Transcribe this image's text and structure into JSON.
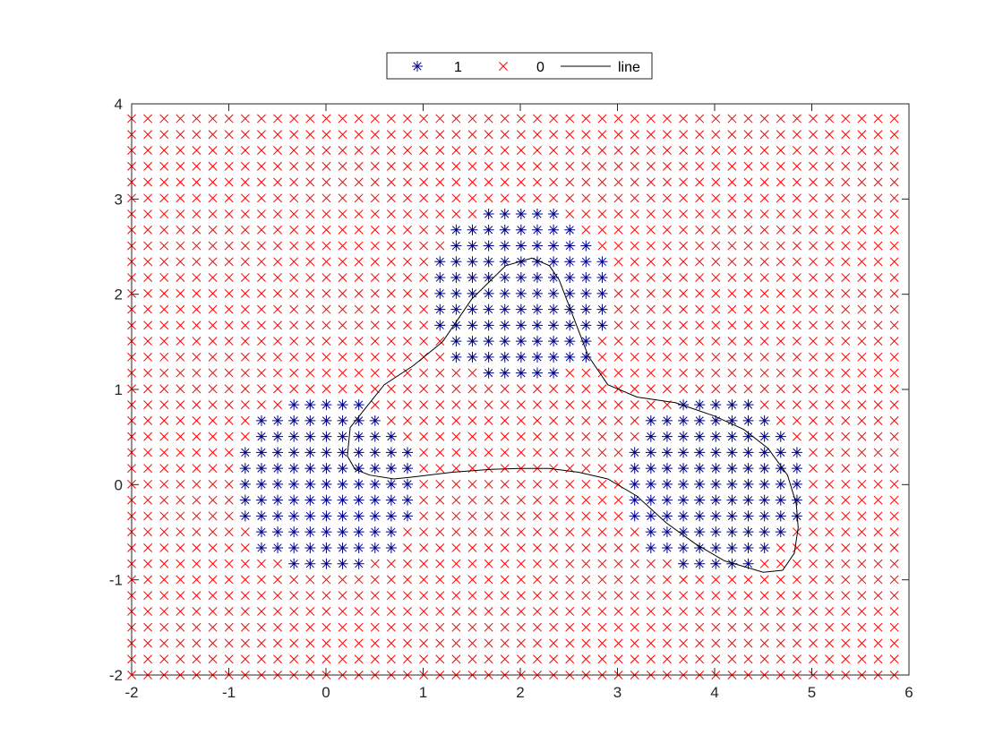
{
  "chart_data": {
    "type": "scatter",
    "title": "",
    "xlabel": "",
    "ylabel": "",
    "xlim": [
      -2,
      6
    ],
    "ylim": [
      -2,
      4
    ],
    "xticks": [
      -2,
      -1,
      0,
      1,
      2,
      3,
      4,
      5,
      6
    ],
    "yticks": [
      -2,
      -1,
      0,
      1,
      2,
      3,
      4
    ],
    "xtick_labels": [
      "-2",
      "-1",
      "0",
      "1",
      "2",
      "3",
      "4",
      "5",
      "6"
    ],
    "ytick_labels": [
      "-2",
      "-1",
      "0",
      "1",
      "2",
      "3",
      "4"
    ],
    "grid": false,
    "legend": {
      "placement": "top-center-outside",
      "orientation": "horizontal",
      "entries": [
        {
          "label": "1",
          "marker": "asterisk",
          "color": "#00008b"
        },
        {
          "label": "0",
          "marker": "x",
          "color": "#ff0000"
        },
        {
          "label": "line",
          "marker": "line",
          "color": "#000000"
        }
      ]
    },
    "sample_grid": {
      "x_start": -2,
      "x_end": 6,
      "x_step": 0.167,
      "y_start": -2,
      "y_end": 4,
      "y_step": 0.167
    },
    "series": [
      {
        "name": "1",
        "marker": "asterisk",
        "color": "#00008b",
        "rule": "points inside any circle",
        "circles": [
          {
            "center": [
              0.0,
              0.0
            ],
            "radius": 0.95
          },
          {
            "center": [
              2.0,
              2.0
            ],
            "radius": 0.95
          },
          {
            "center": [
              4.0,
              0.0
            ],
            "radius": 0.95
          }
        ]
      },
      {
        "name": "0",
        "marker": "x",
        "color": "#ff0000",
        "rule": "all other grid points"
      },
      {
        "name": "line",
        "marker": "line",
        "color": "#000000",
        "points": [
          [
            0.42,
            0.82
          ],
          [
            0.25,
            0.6
          ],
          [
            0.22,
            0.3
          ],
          [
            0.3,
            0.16
          ],
          [
            0.45,
            0.1
          ],
          [
            0.7,
            0.06
          ],
          [
            0.9,
            0.08
          ],
          [
            1.3,
            0.13
          ],
          [
            1.7,
            0.16
          ],
          [
            2.0,
            0.17
          ],
          [
            2.3,
            0.17
          ],
          [
            2.6,
            0.13
          ],
          [
            2.9,
            0.06
          ],
          [
            3.2,
            -0.12
          ],
          [
            3.5,
            -0.4
          ],
          [
            3.8,
            -0.62
          ],
          [
            4.1,
            -0.8
          ],
          [
            4.5,
            -0.92
          ],
          [
            4.7,
            -0.9
          ],
          [
            4.82,
            -0.72
          ],
          [
            4.86,
            -0.45
          ],
          [
            4.84,
            -0.2
          ],
          [
            4.75,
            0.1
          ],
          [
            4.55,
            0.38
          ],
          [
            4.3,
            0.58
          ],
          [
            4.0,
            0.72
          ],
          [
            3.6,
            0.86
          ],
          [
            3.2,
            0.92
          ],
          [
            2.9,
            1.05
          ],
          [
            2.7,
            1.35
          ],
          [
            2.55,
            1.75
          ],
          [
            2.4,
            2.15
          ],
          [
            2.3,
            2.3
          ],
          [
            2.12,
            2.38
          ],
          [
            1.85,
            2.3
          ],
          [
            1.5,
            1.95
          ],
          [
            1.2,
            1.5
          ],
          [
            0.9,
            1.25
          ],
          [
            0.6,
            1.05
          ],
          [
            0.42,
            0.82
          ]
        ]
      }
    ]
  }
}
